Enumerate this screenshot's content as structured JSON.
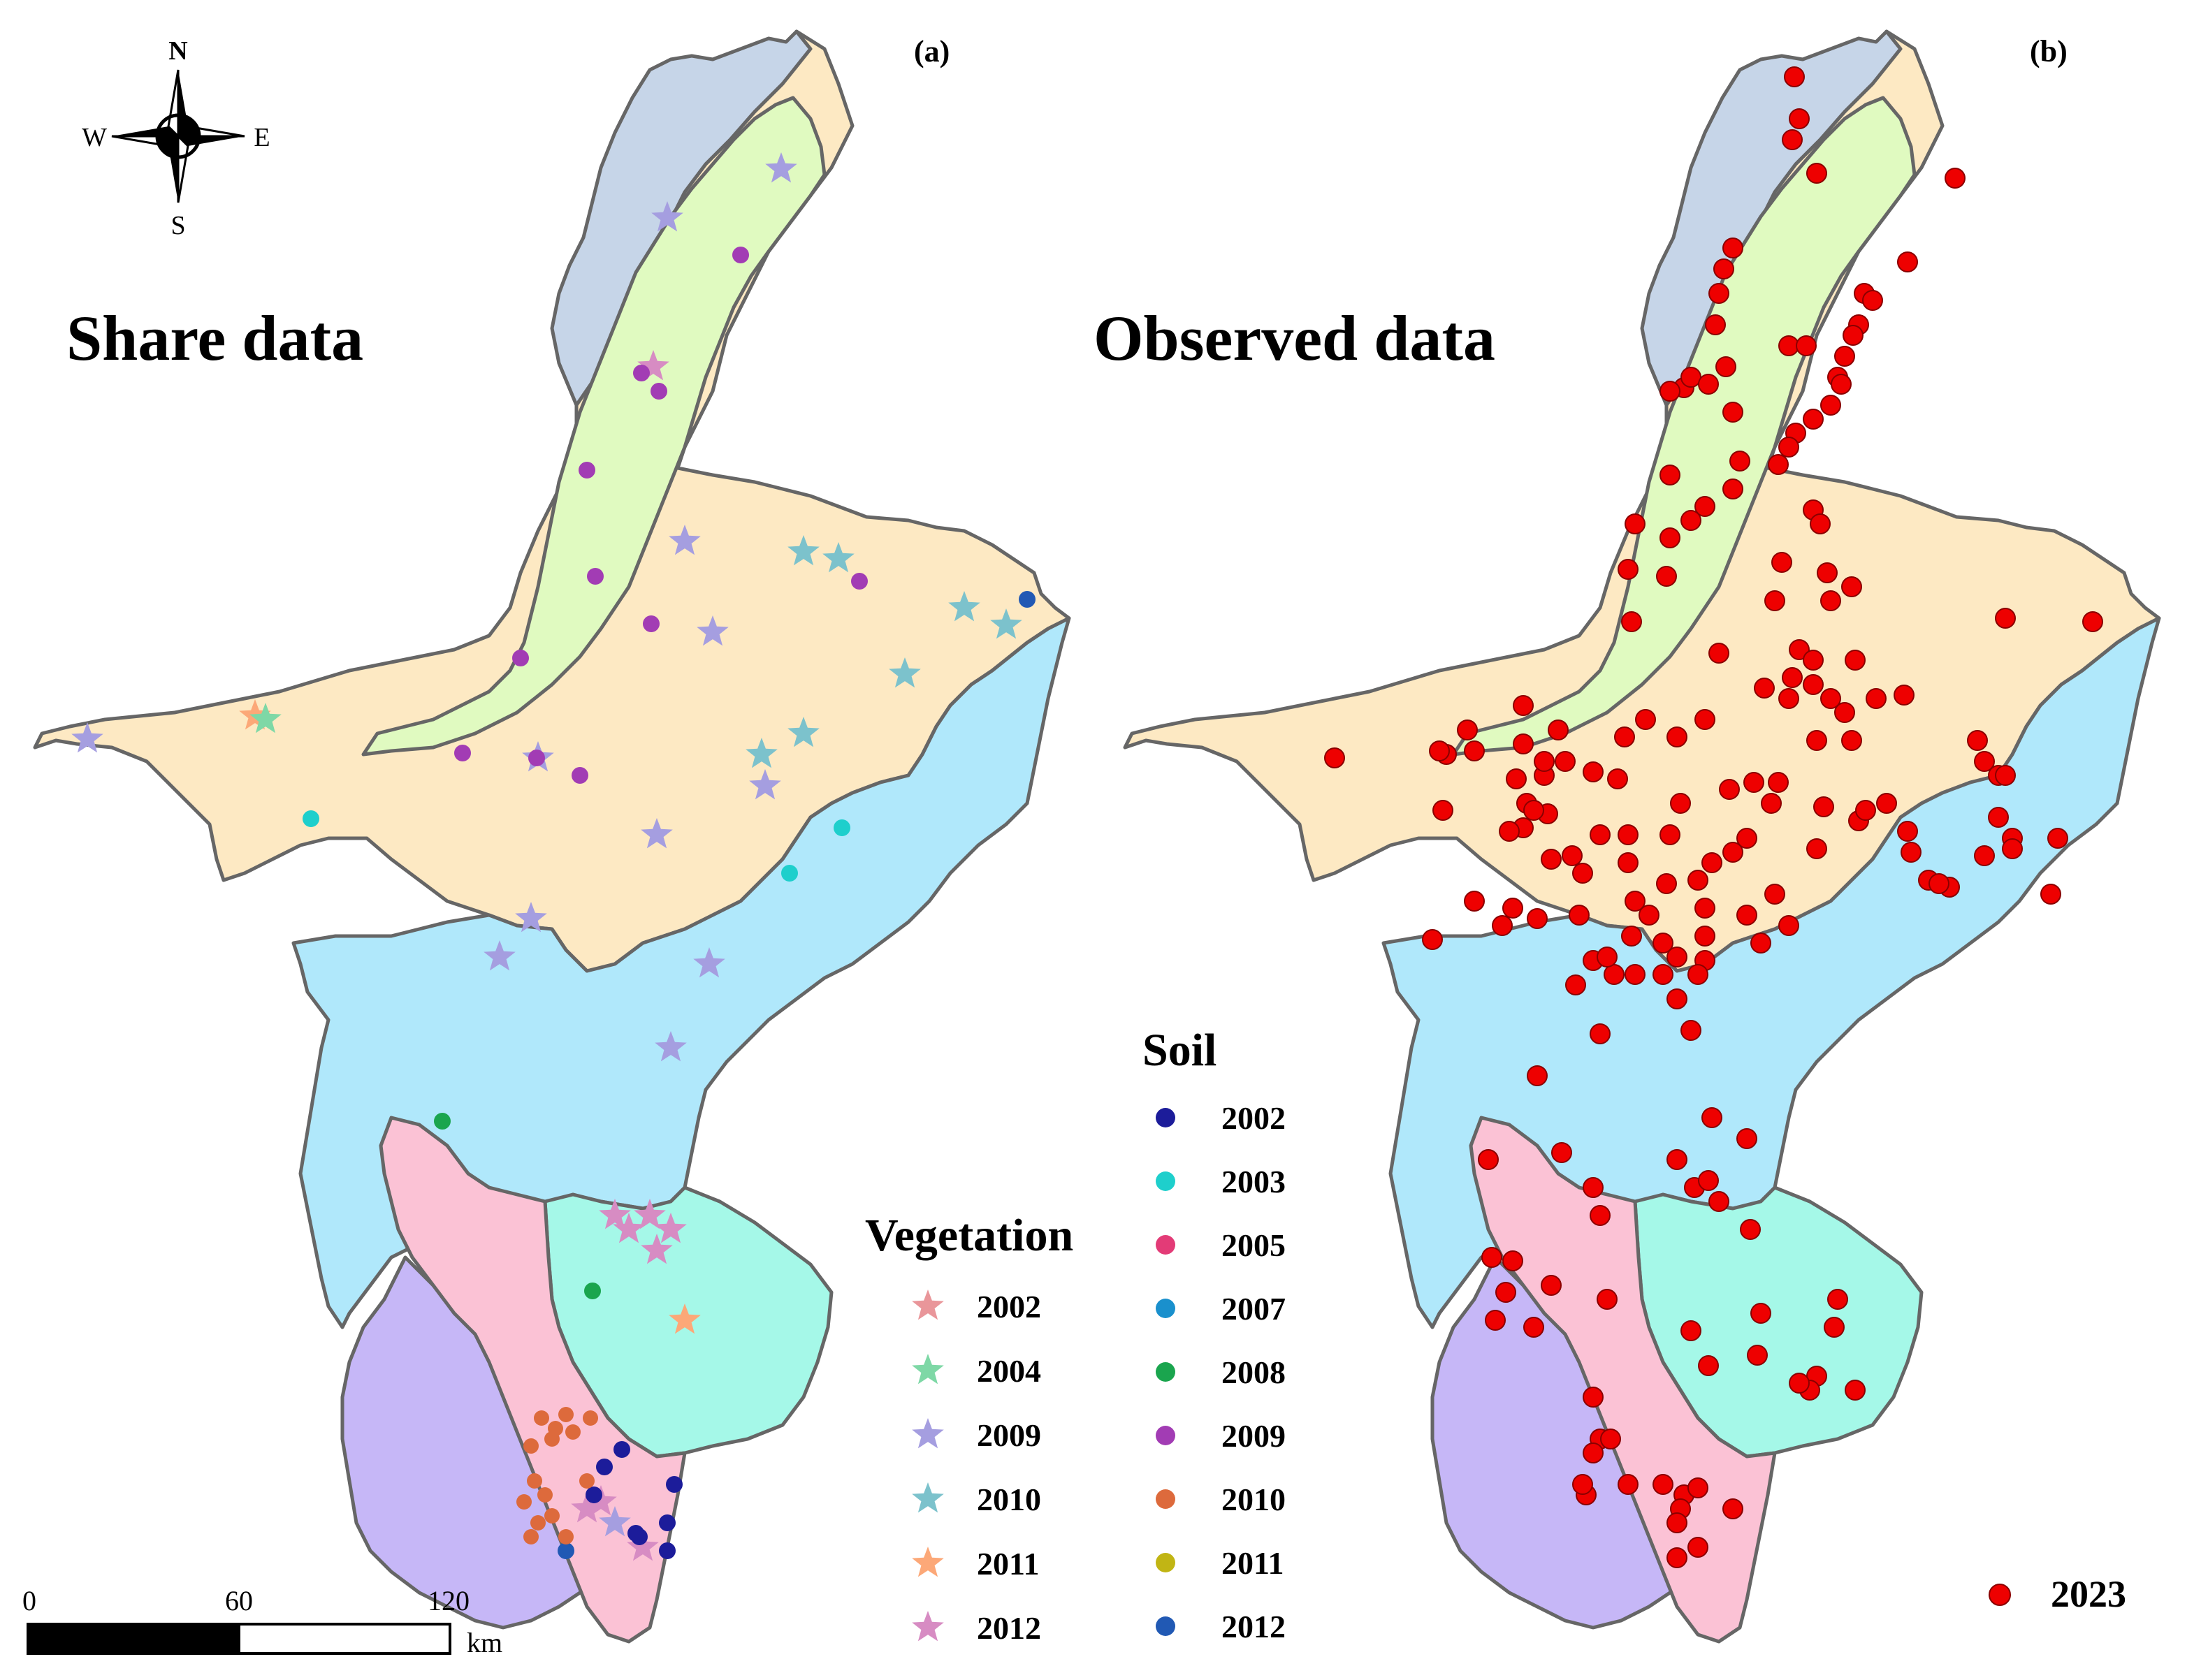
{
  "panels": {
    "a": {
      "label": "(a)",
      "title": "Share data"
    },
    "b": {
      "label": "(b)",
      "title": "Observed data"
    }
  },
  "compass": {
    "n": "N",
    "s": "S",
    "e": "E",
    "w": "W"
  },
  "scale_bar": {
    "ticks": [
      "0",
      "60",
      "120"
    ],
    "unit": "km"
  },
  "zone_colors": {
    "northwest_strip": "#c6d5e8",
    "green_valley": "#e0fac0",
    "central_plain": "#fde9c3",
    "mid_band": "#b0e8fb",
    "south_pink": "#fbc2d5",
    "south_purple": "#c6b7f7",
    "south_teal": "#a5f8e8"
  },
  "legend_vegetation": {
    "title": "Vegetation",
    "items": [
      {
        "label": "2002",
        "color": "#e9969a"
      },
      {
        "label": "2004",
        "color": "#7ed8a6"
      },
      {
        "label": "2009",
        "color": "#a59ee0"
      },
      {
        "label": "2010",
        "color": "#7cc2cc"
      },
      {
        "label": "2011",
        "color": "#fca878"
      },
      {
        "label": "2012",
        "color": "#d78cc3"
      }
    ]
  },
  "legend_soil": {
    "title": "Soil",
    "items": [
      {
        "label": "2002",
        "color": "#1c1c9a"
      },
      {
        "label": "2003",
        "color": "#1ecfcc"
      },
      {
        "label": "2005",
        "color": "#e33b77"
      },
      {
        "label": "2007",
        "color": "#1a90cd"
      },
      {
        "label": "2008",
        "color": "#1aa54e"
      },
      {
        "label": "2009",
        "color": "#a23cb4"
      },
      {
        "label": "2010",
        "color": "#dd6a3c"
      },
      {
        "label": "2011",
        "color": "#c1b514"
      },
      {
        "label": "2012",
        "color": "#2159b4"
      }
    ]
  },
  "legend_observed": {
    "label": "2023",
    "color": "#ee0000"
  }
}
